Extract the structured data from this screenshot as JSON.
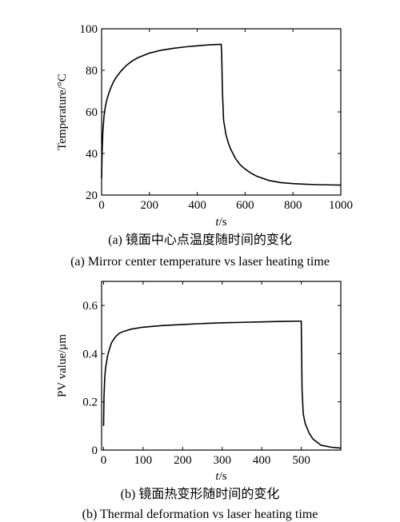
{
  "chart_data": [
    {
      "type": "line",
      "ylabel": "Temperature/°C",
      "xlabel_italic": "t",
      "xlabel_unit": "/s",
      "xlim": [
        0,
        1000
      ],
      "ylim": [
        20,
        100
      ],
      "xticks": [
        0,
        200,
        400,
        600,
        800,
        1000
      ],
      "yticks": [
        20,
        40,
        60,
        80,
        100
      ],
      "caption_cn": "(a) 镜面中心点温度随时间的变化",
      "caption_en": "(a) Mirror center temperature vs laser heating time",
      "series": [
        {
          "x": [
            0,
            2,
            5,
            10,
            15,
            20,
            30,
            40,
            50,
            60,
            80,
            100,
            125,
            150,
            200,
            250,
            300,
            350,
            400,
            450,
            500,
            502,
            505,
            510,
            520,
            530,
            540,
            560,
            580,
            600,
            625,
            650,
            700,
            750,
            800,
            850,
            900,
            950,
            1000
          ],
          "y": [
            28,
            40,
            50,
            58,
            62,
            65,
            69,
            72,
            74.5,
            76.5,
            79.5,
            82,
            84.3,
            86,
            88.3,
            89.7,
            90.6,
            91.3,
            91.8,
            92.3,
            92.5,
            88,
            70,
            56,
            49,
            45,
            42,
            37.5,
            34.5,
            32.5,
            30.5,
            29,
            27,
            26,
            25.5,
            25.2,
            25,
            24.9,
            24.8
          ]
        }
      ]
    },
    {
      "type": "line",
      "ylabel": "PV value/μm",
      "xlabel_italic": "t",
      "xlabel_unit": "/s",
      "xlim": [
        -5,
        600
      ],
      "ylim": [
        0,
        0.7
      ],
      "xticks": [
        0,
        100,
        200,
        300,
        400,
        500
      ],
      "yticks": [
        0,
        0.2,
        0.4,
        0.6
      ],
      "ytick_labels": [
        "0",
        "0.2",
        "0.4",
        "0.6"
      ],
      "caption_cn": "(b) 镜面热变形随时间的变化",
      "caption_en": "(b) Thermal deformation vs laser heating time",
      "series": [
        {
          "x": [
            0,
            1,
            3,
            5,
            8,
            10,
            15,
            20,
            30,
            40,
            50,
            70,
            100,
            150,
            200,
            250,
            300,
            350,
            400,
            450,
            495,
            500,
            502,
            505,
            510,
            520,
            530,
            550,
            575,
            600
          ],
          "y": [
            0.1,
            0.22,
            0.3,
            0.34,
            0.37,
            0.39,
            0.42,
            0.445,
            0.47,
            0.485,
            0.492,
            0.502,
            0.51,
            0.517,
            0.521,
            0.525,
            0.528,
            0.53,
            0.532,
            0.534,
            0.535,
            0.535,
            0.25,
            0.15,
            0.11,
            0.07,
            0.045,
            0.02,
            0.012,
            0.008
          ]
        }
      ]
    }
  ]
}
